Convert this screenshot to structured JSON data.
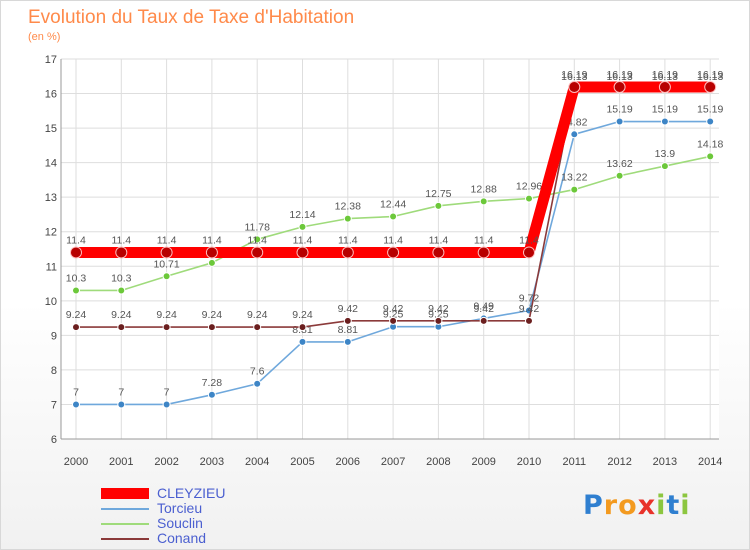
{
  "title": "Evolution du Taux de Taxe d'Habitation",
  "unit": "(en %)",
  "logo_text": "Proxiti",
  "chart_data": {
    "type": "line",
    "x": [
      2000,
      2001,
      2002,
      2003,
      2004,
      2005,
      2006,
      2007,
      2008,
      2009,
      2010,
      2011,
      2012,
      2013,
      2014
    ],
    "ylim": [
      6,
      17
    ],
    "yticks": [
      6,
      7,
      8,
      9,
      10,
      11,
      12,
      13,
      14,
      15,
      16,
      17
    ],
    "grid": true,
    "legend_position": "bottom-left",
    "series": [
      {
        "name": "CLEYZIEU",
        "color": "#ff0000",
        "marker": "#b80000",
        "emphasis": true,
        "values": [
          11.4,
          11.4,
          11.4,
          11.4,
          11.4,
          11.4,
          11.4,
          11.4,
          11.4,
          11.4,
          11.4,
          16.19,
          16.19,
          16.19,
          16.19
        ],
        "labels": [
          "11.4",
          "11.4",
          "11.4",
          "11.4",
          "11.4",
          "11.4",
          "11.4",
          "11.4",
          "11.4",
          "11.4",
          "11.4",
          "16.19",
          "16.19",
          "16.19",
          "16.19"
        ]
      },
      {
        "name": "Torcieu",
        "color": "#6fa8dc",
        "marker": "#3d85c6",
        "emphasis": false,
        "values": [
          7,
          7,
          7,
          7.28,
          7.6,
          8.81,
          8.81,
          9.25,
          9.25,
          9.49,
          9.72,
          14.82,
          15.19,
          15.19,
          15.19
        ],
        "labels": [
          "7",
          "7",
          "7",
          "7.28",
          "7.6",
          "8.81",
          "8.81",
          "9.25",
          "9.25",
          "9.49",
          "9.72",
          "14.82",
          "15.19",
          "15.19",
          "15.19"
        ]
      },
      {
        "name": "Souclin",
        "color": "#9fdb7b",
        "marker": "#6cc83a",
        "emphasis": false,
        "values": [
          10.3,
          10.3,
          10.71,
          11.1,
          11.78,
          12.14,
          12.38,
          12.44,
          12.75,
          12.88,
          12.96,
          13.22,
          13.62,
          13.9,
          14.18
        ],
        "labels": [
          "10.3",
          "10.3",
          "10.71",
          "11.1",
          "11.78",
          "12.14",
          "12.38",
          "12.44",
          "12.75",
          "12.88",
          "12.96",
          "13.22",
          "13.62",
          "13.9",
          "14.18"
        ]
      },
      {
        "name": "Conand",
        "color": "#8b3a3a",
        "marker": "#6b1f1f",
        "emphasis": false,
        "values": [
          9.24,
          9.24,
          9.24,
          9.24,
          9.24,
          9.24,
          9.42,
          9.42,
          9.42,
          9.42,
          9.42,
          16.13,
          16.13,
          16.13,
          16.13
        ],
        "labels": [
          "9.24",
          "9.24",
          "9.24",
          "9.24",
          "9.24",
          "9.24",
          "9.42",
          "9.42",
          "9.42",
          "9.42",
          "9.42",
          "16.13",
          "16.13",
          "16.13",
          "16.13"
        ]
      }
    ]
  }
}
